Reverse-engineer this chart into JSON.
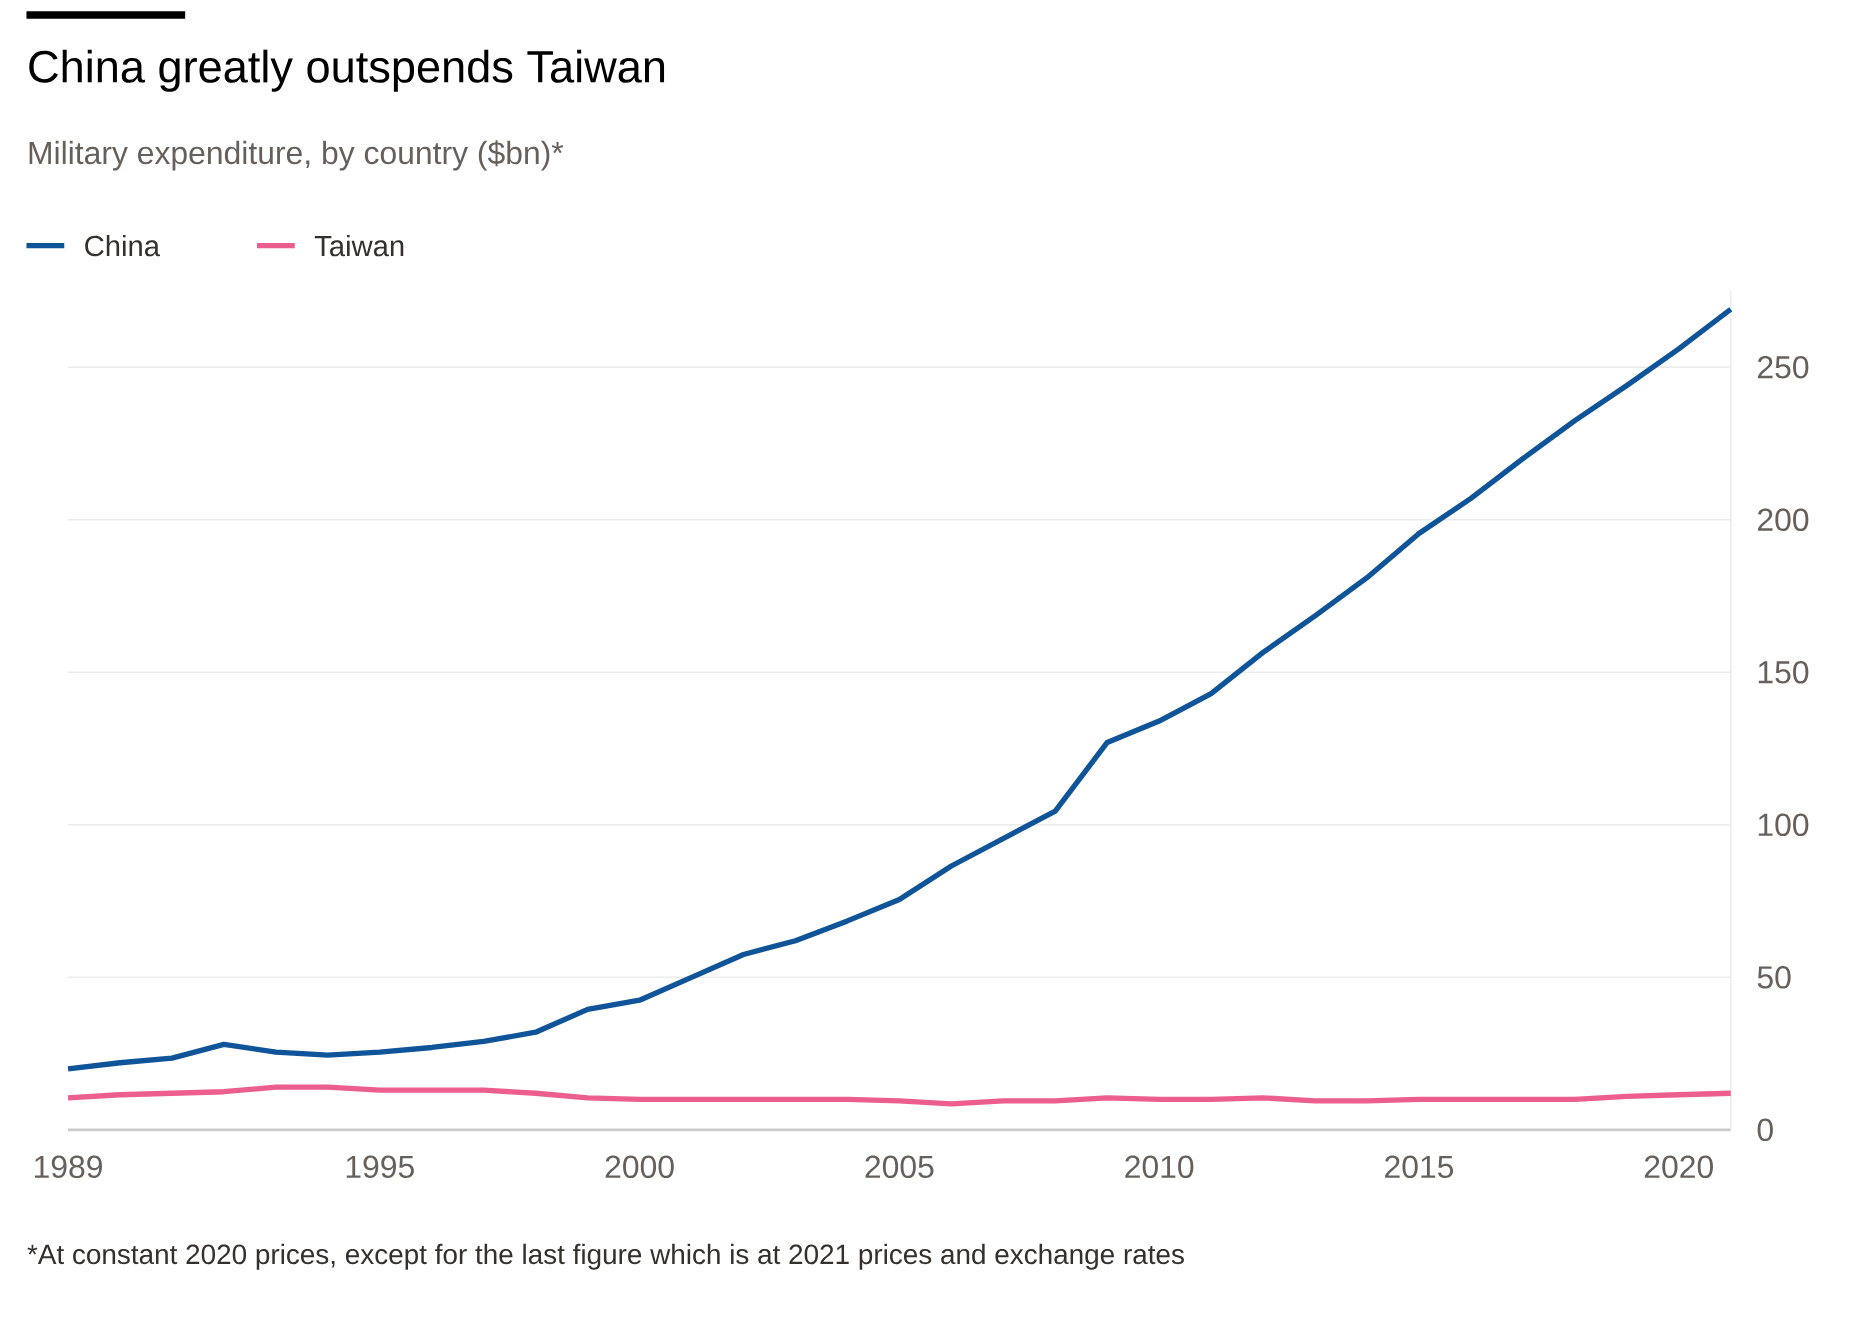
{
  "chart_data": {
    "type": "line",
    "title": "China greatly outspends Taiwan",
    "subtitle": "Military expenditure, by country ($bn)*",
    "annotations": [
      "*At constant 2020 prices, except for the last figure which is at 2021 prices and exchange rates"
    ],
    "x": [
      1989,
      1990,
      1991,
      1992,
      1993,
      1994,
      1995,
      1996,
      1997,
      1998,
      1999,
      2000,
      2001,
      2002,
      2003,
      2004,
      2005,
      2006,
      2007,
      2008,
      2009,
      2010,
      2011,
      2012,
      2013,
      2014,
      2015,
      2016,
      2017,
      2018,
      2019,
      2020,
      2021
    ],
    "series": [
      {
        "name": "China",
        "color": "#0f5499",
        "values": [
          20,
          22,
          23.5,
          28,
          25.5,
          24.5,
          25.5,
          27,
          29,
          32,
          39.5,
          42.5,
          50,
          57.5,
          62,
          68.5,
          75.5,
          86.5,
          95.5,
          104.5,
          127,
          134,
          143,
          156.5,
          168.5,
          181,
          195.5,
          207,
          220,
          232.5,
          244,
          256,
          269
        ]
      },
      {
        "name": "Taiwan",
        "color": "#eb5e8d",
        "values": [
          10.5,
          11.5,
          12,
          12.5,
          14,
          14,
          13,
          13,
          13,
          12,
          10.5,
          10,
          10,
          10,
          10,
          10,
          9.5,
          8.5,
          9.5,
          9.5,
          10.5,
          10,
          10,
          10.5,
          9.5,
          9.5,
          10,
          10,
          10,
          10,
          11,
          11.5,
          12
        ]
      }
    ],
    "xlim": [
      1989,
      2021
    ],
    "ylim": [
      0,
      275
    ],
    "xticks": [
      1989,
      1995,
      2000,
      2005,
      2010,
      2015,
      2020
    ],
    "yticks": [
      0,
      50,
      100,
      150,
      200,
      250
    ],
    "grid": "y",
    "legend": "top left",
    "line_style": "solid",
    "marker": "none"
  }
}
